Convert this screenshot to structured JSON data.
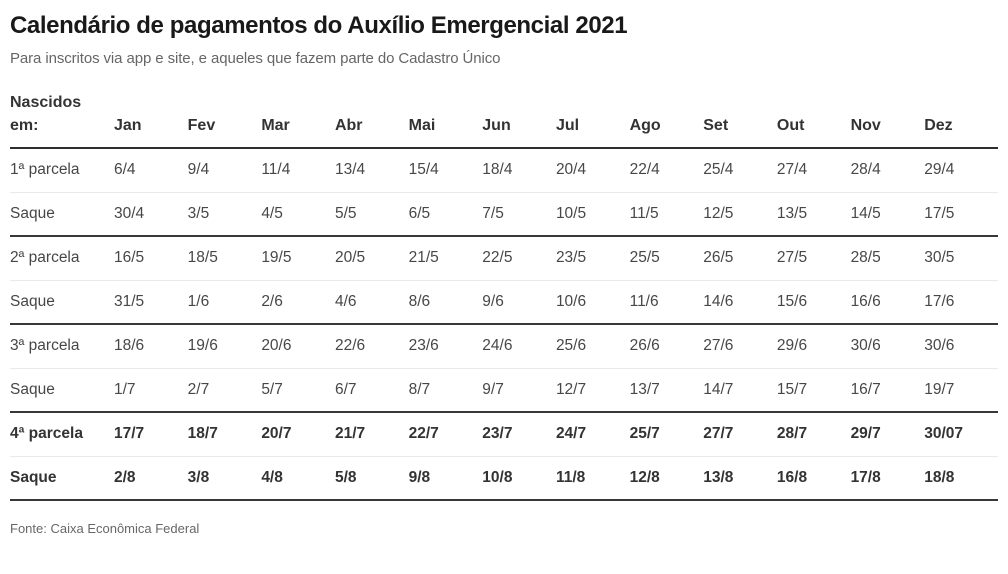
{
  "page": {
    "title": "Calendário de pagamentos do Auxílio Emergencial 2021",
    "subtitle": "Para inscritos via app e site, e aqueles que fazem parte do Cadastro Único",
    "source": "Fonte: Caixa Econômica Federal"
  },
  "colors": {
    "title_text": "#191919",
    "subtitle_text": "#666666",
    "table_text": "#474747",
    "dark_border": "#383838",
    "light_border": "#e9e9e9",
    "background": "#ffffff"
  },
  "chart_data": {
    "type": "table",
    "title": "Calendário de pagamentos do Auxílio Emergencial 2021",
    "subtitle": "Para inscritos via app e site, e aqueles que fazem parte do Cadastro Único",
    "source": "Fonte: Caixa Econômica Federal",
    "row_header_label": "Nascidos em:",
    "columns": [
      "Jan",
      "Fev",
      "Mar",
      "Abr",
      "Mai",
      "Jun",
      "Jul",
      "Ago",
      "Set",
      "Out",
      "Nov",
      "Dez"
    ],
    "rows": [
      {
        "label": "1ª parcela",
        "bold": false,
        "group_end": false,
        "values": [
          "6/4",
          "9/4",
          "11/4",
          "13/4",
          "15/4",
          "18/4",
          "20/4",
          "22/4",
          "25/4",
          "27/4",
          "28/4",
          "29/4"
        ]
      },
      {
        "label": "Saque",
        "bold": false,
        "group_end": true,
        "values": [
          "30/4",
          "3/5",
          "4/5",
          "5/5",
          "6/5",
          "7/5",
          "10/5",
          "11/5",
          "12/5",
          "13/5",
          "14/5",
          "17/5"
        ]
      },
      {
        "label": "2ª parcela",
        "bold": false,
        "group_end": false,
        "values": [
          "16/5",
          "18/5",
          "19/5",
          "20/5",
          "21/5",
          "22/5",
          "23/5",
          "25/5",
          "26/5",
          "27/5",
          "28/5",
          "30/5"
        ]
      },
      {
        "label": "Saque",
        "bold": false,
        "group_end": true,
        "values": [
          "31/5",
          "1/6",
          "2/6",
          "4/6",
          "8/6",
          "9/6",
          "10/6",
          "11/6",
          "14/6",
          "15/6",
          "16/6",
          "17/6"
        ]
      },
      {
        "label": "3ª parcela",
        "bold": false,
        "group_end": false,
        "values": [
          "18/6",
          "19/6",
          "20/6",
          "22/6",
          "23/6",
          "24/6",
          "25/6",
          "26/6",
          "27/6",
          "29/6",
          "30/6",
          "30/6"
        ]
      },
      {
        "label": "Saque",
        "bold": false,
        "group_end": true,
        "values": [
          "1/7",
          "2/7",
          "5/7",
          "6/7",
          "8/7",
          "9/7",
          "12/7",
          "13/7",
          "14/7",
          "15/7",
          "16/7",
          "19/7"
        ]
      },
      {
        "label": "4ª parcela",
        "bold": true,
        "group_end": false,
        "values": [
          "17/7",
          "18/7",
          "20/7",
          "21/7",
          "22/7",
          "23/7",
          "24/7",
          "25/7",
          "27/7",
          "28/7",
          "29/7",
          "30/07"
        ]
      },
      {
        "label": "Saque",
        "bold": true,
        "group_end": true,
        "values": [
          "2/8",
          "3/8",
          "4/8",
          "5/8",
          "9/8",
          "10/8",
          "11/8",
          "12/8",
          "13/8",
          "16/8",
          "17/8",
          "18/8"
        ]
      }
    ]
  }
}
